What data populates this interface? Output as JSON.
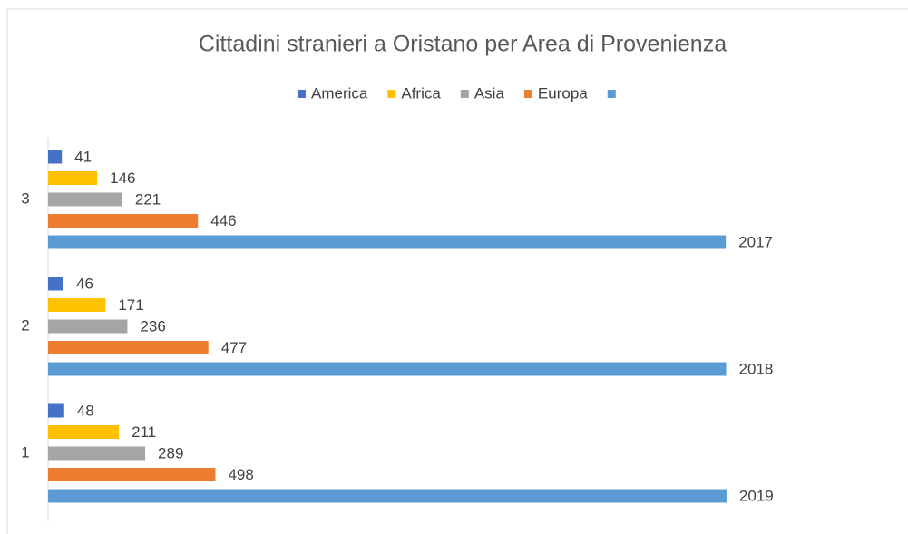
{
  "chart_data": {
    "type": "hbar",
    "title": "Cittadini stranieri a Oristano per Area di Provenienza",
    "categories": [
      "1",
      "2",
      "3"
    ],
    "series": [
      {
        "name": "America",
        "color": "#4472c4",
        "values": [
          48,
          46,
          41
        ]
      },
      {
        "name": "Africa",
        "color": "#ffc000",
        "values": [
          211,
          171,
          146
        ]
      },
      {
        "name": "Asia",
        "color": "#a5a5a5",
        "values": [
          289,
          236,
          221
        ]
      },
      {
        "name": "Europa",
        "color": "#ed7d31",
        "values": [
          498,
          477,
          446
        ]
      },
      {
        "name": null,
        "color": "#5b9bd5",
        "values": [
          2019,
          2018,
          2017
        ]
      }
    ],
    "xlim": [
      0,
      2030
    ],
    "legend": "top",
    "data_labels": true
  }
}
